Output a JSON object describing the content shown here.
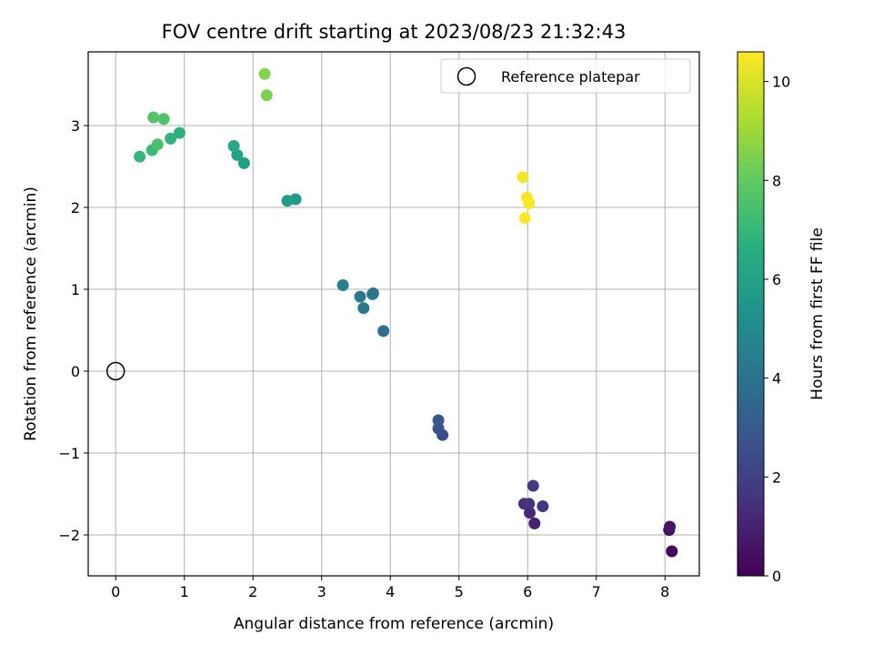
{
  "chart_data": {
    "type": "scatter",
    "title": "FOV centre drift starting at 2023/08/23 21:32:43",
    "xlabel": "Angular distance from reference (arcmin)",
    "ylabel": "Rotation from reference (arcmin)",
    "xlim": [
      -0.4,
      8.5
    ],
    "ylim": [
      -2.5,
      3.9
    ],
    "x_ticks": [
      0,
      1,
      2,
      3,
      4,
      5,
      6,
      7,
      8
    ],
    "y_ticks": [
      -2,
      -1,
      0,
      1,
      2,
      3
    ],
    "x_tick_labels": [
      "0",
      "1",
      "2",
      "3",
      "4",
      "5",
      "6",
      "7",
      "8"
    ],
    "y_tick_labels": [
      "−2",
      "−1",
      "0",
      "1",
      "2",
      "3"
    ],
    "grid": true,
    "legend": {
      "placement": "upper-right",
      "entries": [
        "Reference platepar"
      ]
    },
    "reference_point": {
      "x": 0,
      "y": 0,
      "marker": "open-circle",
      "color": "#000000"
    },
    "colorbar": {
      "label": "Hours from first FF file",
      "range": [
        0,
        10.6
      ],
      "ticks": [
        0,
        2,
        4,
        6,
        8,
        10
      ],
      "tick_labels": [
        "0",
        "2",
        "4",
        "6",
        "8",
        "10"
      ],
      "colormap": "viridis"
    },
    "series": [
      {
        "x": [
          8.1,
          8.06,
          8.07,
          6.1,
          6.03,
          5.95,
          6.02,
          6.22,
          6.08,
          4.76,
          4.7,
          4.7,
          3.9,
          3.75,
          3.74,
          3.61,
          3.56,
          3.31,
          2.62,
          2.5,
          1.87,
          1.77,
          1.72,
          0.93,
          0.8,
          0.35,
          0.53,
          0.61,
          0.7,
          0.55,
          2.2,
          2.17,
          5.96,
          6.02,
          5.99,
          5.93
        ],
        "y": [
          -2.2,
          -1.94,
          -1.9,
          -1.86,
          -1.73,
          -1.62,
          -1.62,
          -1.65,
          -1.4,
          -0.78,
          -0.7,
          -0.6,
          0.49,
          0.95,
          0.94,
          0.77,
          0.91,
          1.05,
          2.1,
          2.08,
          2.54,
          2.64,
          2.75,
          2.91,
          2.84,
          2.62,
          2.7,
          2.77,
          3.08,
          3.1,
          3.37,
          3.63,
          1.87,
          2.05,
          2.12,
          2.37
        ],
        "hours": [
          0.1,
          0.4,
          0.6,
          1.0,
          1.2,
          1.4,
          1.6,
          1.7,
          1.8,
          2.5,
          2.7,
          2.9,
          3.8,
          4.0,
          4.1,
          4.2,
          4.3,
          4.6,
          5.7,
          5.8,
          6.0,
          6.1,
          6.3,
          6.7,
          6.8,
          7.0,
          7.2,
          7.5,
          7.6,
          7.7,
          8.5,
          8.6,
          10.6,
          10.55,
          10.5,
          10.45
        ]
      }
    ]
  }
}
